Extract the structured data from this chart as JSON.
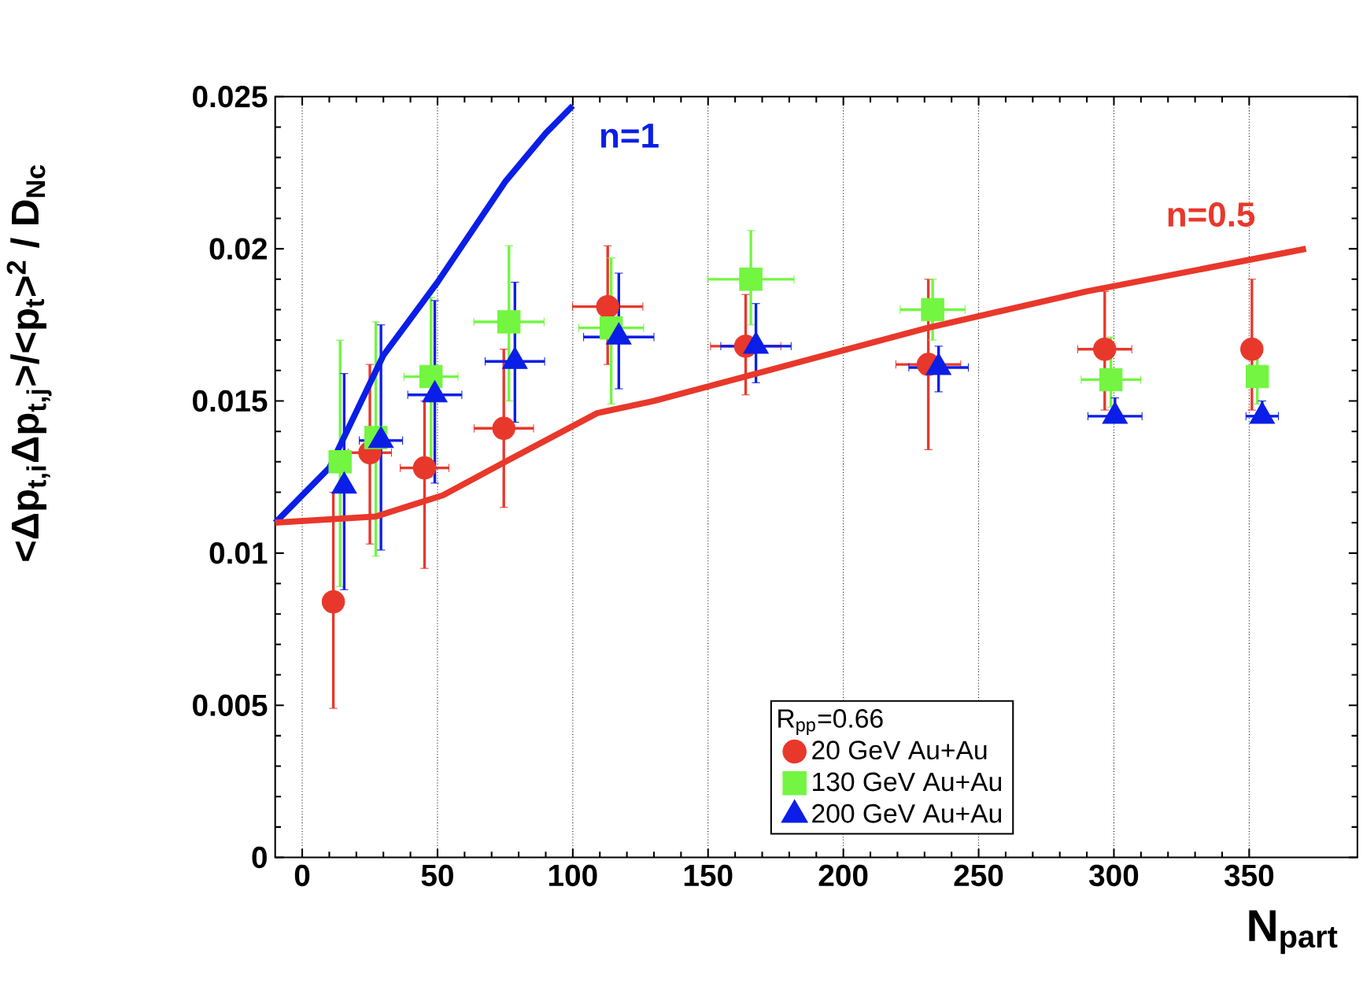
{
  "chart_data": {
    "type": "scatter",
    "xlabel": "N$_{part}$",
    "ylabel": "<Δp$_{t,i}$Δp$_{t,j}$>/<p$_{t}$>$^{2}$ / D$_{Nc}$",
    "legend_title": "R$_{pp}$=0.66",
    "xlim": [
      -10,
      390
    ],
    "xticks": [
      0,
      50,
      100,
      150,
      200,
      250,
      300,
      350
    ],
    "ylim": [
      0,
      0.025
    ],
    "yticks": [
      0,
      0.005,
      0.01,
      0.015,
      0.02,
      0.025
    ],
    "grid": "x",
    "legend": "bottom",
    "series": [
      {
        "name": "20 GeV Au+Au",
        "marker": "circle",
        "color": "#e8382b",
        "x": [
          11.5,
          25,
          45.2,
          74.5,
          112.9,
          163.9,
          231.4,
          296.6,
          351
        ],
        "values": [
          0.0084,
          0.0133,
          0.0128,
          0.0141,
          0.0181,
          0.0168,
          0.0162,
          0.0167,
          0.0167
        ],
        "errors": [
          [
            0.0049,
            0.012
          ],
          [
            0.0103,
            0.0162
          ],
          [
            0.0095,
            0.015
          ],
          [
            0.0115,
            0.0167
          ],
          [
            0.0162,
            0.0201
          ],
          [
            0.0152,
            0.0185
          ],
          [
            0.0134,
            0.019
          ],
          [
            0.0147,
            0.0186
          ],
          [
            0.0147,
            0.019
          ]
        ],
        "xerrors": [
          null,
          8,
          9,
          11,
          13,
          13,
          12,
          10,
          null
        ]
      },
      {
        "name": "130 GeV Au+Au",
        "marker": "square",
        "color": "#73f542",
        "x": [
          14,
          27.2,
          47.6,
          76.4,
          114.2,
          165.8,
          233,
          298.9,
          353
        ],
        "values": [
          0.013,
          0.0138,
          0.0158,
          0.0176,
          0.0174,
          0.019,
          0.018,
          0.0157,
          0.0158
        ],
        "errors": [
          [
            0.0089,
            0.017
          ],
          [
            0.0099,
            0.0176
          ],
          [
            0.0125,
            0.0184
          ],
          [
            0.015,
            0.0201
          ],
          [
            0.0149,
            0.0197
          ],
          [
            0.0175,
            0.0206
          ],
          [
            0.017,
            0.019
          ],
          [
            0.0148,
            0.0171
          ],
          [
            0.0149,
            0.0168
          ]
        ],
        "xerrors": [
          null,
          null,
          10,
          13,
          12,
          16,
          12,
          11,
          null
        ]
      },
      {
        "name": "200 GeV Au+Au",
        "marker": "triangle",
        "color": "#0a1ee8",
        "x": [
          15.5,
          29.1,
          49,
          78.6,
          117,
          167.7,
          235.2,
          300.4,
          354.8
        ],
        "values": [
          0.0122,
          0.0137,
          0.0152,
          0.0163,
          0.0171,
          0.0168,
          0.0161,
          0.0145,
          0.0145
        ],
        "errors": [
          [
            0.0088,
            0.0159
          ],
          [
            0.0101,
            0.0175
          ],
          [
            0.0123,
            0.0183
          ],
          [
            0.0143,
            0.0189
          ],
          [
            0.0154,
            0.0192
          ],
          [
            0.0156,
            0.0182
          ],
          [
            0.0153,
            0.0168
          ],
          [
            0.0143,
            0.0151
          ],
          [
            0.0143,
            0.015
          ]
        ],
        "xerrors": [
          null,
          8,
          10,
          11,
          13,
          13,
          11,
          10,
          6
        ]
      },
      {
        "name": "n=1",
        "type": "line",
        "marker": "none",
        "color": "#0a1ee8",
        "x": [
          -10,
          10,
          30,
          50,
          75,
          90,
          100
        ],
        "values": [
          0.011,
          0.0128,
          0.0165,
          0.0189,
          0.0222,
          0.0238,
          0.0247
        ]
      },
      {
        "name": "n=0.5",
        "type": "line",
        "marker": "none",
        "color": "#e8382b",
        "x": [
          -10,
          27,
          52,
          75,
          109,
          130,
          231,
          290,
          371
        ],
        "values": [
          0.011,
          0.0112,
          0.0119,
          0.013,
          0.0146,
          0.015,
          0.0174,
          0.0186,
          0.02
        ]
      }
    ]
  }
}
